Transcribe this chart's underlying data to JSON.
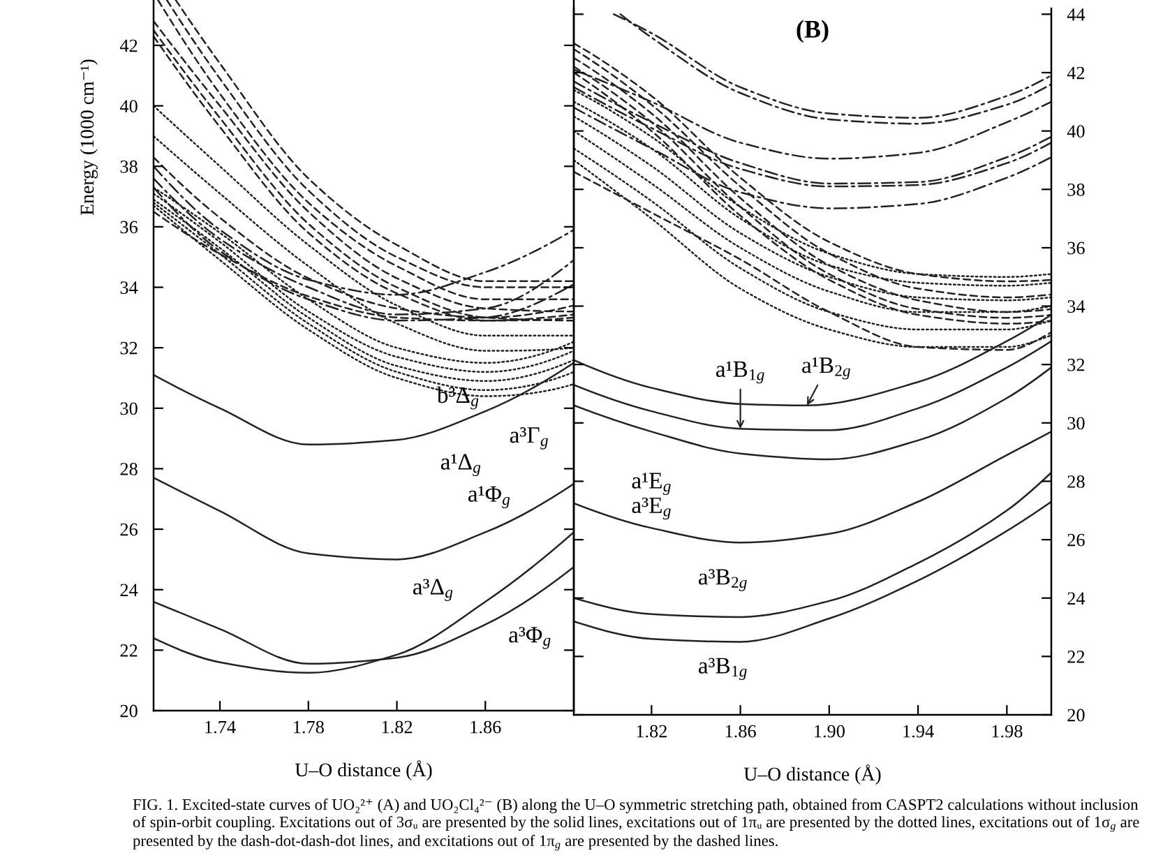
{
  "chart_data": [
    {
      "type": "line",
      "xlabel": "U–O distance (Å)",
      "ylabel": "Energy (1000 cm⁻¹)",
      "x": [
        1.71,
        1.74,
        1.78,
        1.82,
        1.86,
        1.9
      ],
      "xlim": [
        1.71,
        1.9
      ],
      "ylim": [
        20,
        43.5
      ],
      "xticks": [
        1.74,
        1.78,
        1.82,
        1.86
      ],
      "yticks": [
        20,
        22,
        24,
        26,
        28,
        30,
        32,
        34,
        36,
        38,
        40,
        42
      ],
      "series": [
        {
          "color": "#222222",
          "line_style": "solid",
          "values": [
            31.1,
            30.0,
            28.8,
            28.95,
            29.9,
            31.5
          ]
        },
        {
          "color": "#222222",
          "line_style": "solid",
          "values": [
            27.7,
            26.6,
            25.2,
            25.0,
            25.9,
            27.5
          ]
        },
        {
          "color": "#222222",
          "line_style": "solid",
          "values": [
            23.6,
            22.7,
            21.55,
            21.75,
            22.85,
            24.75
          ]
        },
        {
          "color": "#222222",
          "line_style": "solid",
          "values": [
            22.4,
            21.6,
            21.25,
            21.85,
            23.6,
            25.9
          ]
        },
        {
          "color": "#222222",
          "line_style": "dotted",
          "values": [
            40.0,
            38.0,
            35.4,
            33.4,
            32.4,
            32.4
          ]
        },
        {
          "color": "#222222",
          "line_style": "dotted",
          "values": [
            39.0,
            37.1,
            34.7,
            32.8,
            31.9,
            32.0
          ]
        },
        {
          "color": "#222222",
          "line_style": "dotted",
          "values": [
            37.3,
            35.8,
            33.6,
            32.0,
            31.5,
            32.2
          ]
        },
        {
          "color": "#222222",
          "line_style": "dotted",
          "values": [
            37.1,
            35.5,
            33.2,
            31.7,
            31.2,
            31.9
          ]
        },
        {
          "color": "#222222",
          "line_style": "dotted",
          "values": [
            36.9,
            35.3,
            33.0,
            31.4,
            30.9,
            31.6
          ]
        },
        {
          "color": "#222222",
          "line_style": "dotted",
          "values": [
            36.8,
            35.1,
            32.8,
            31.2,
            30.6,
            31.2
          ]
        },
        {
          "color": "#222222",
          "line_style": "dotted",
          "values": [
            36.7,
            34.9,
            32.6,
            31.0,
            30.4,
            30.8
          ]
        },
        {
          "color": "#222222",
          "line_style": "dashdot",
          "values": [
            38.0,
            35.9,
            34.25,
            33.75,
            34.5,
            35.9
          ]
        },
        {
          "color": "#222222",
          "line_style": "dashdot",
          "values": [
            37.6,
            35.6,
            34.0,
            33.1,
            33.3,
            34.9
          ]
        },
        {
          "color": "#222222",
          "line_style": "dashdot",
          "values": [
            37.3,
            35.2,
            33.6,
            32.9,
            33.0,
            34.1
          ]
        },
        {
          "color": "#222222",
          "line_style": "dashed",
          "x": [
            1.72,
            1.74,
            1.78,
            1.82,
            1.86,
            1.9
          ],
          "values": [
            43.5,
            41.4,
            37.6,
            35.4,
            34.2,
            34.2
          ]
        },
        {
          "color": "#222222",
          "line_style": "dashed",
          "x": [
            1.716,
            1.74,
            1.78,
            1.82,
            1.86,
            1.9
          ],
          "values": [
            43.5,
            40.9,
            37.2,
            35.0,
            34.0,
            34.0
          ]
        },
        {
          "color": "#222222",
          "line_style": "dashed",
          "x": [
            1.712,
            1.74,
            1.78,
            1.82,
            1.86,
            1.9
          ],
          "values": [
            43.5,
            40.4,
            36.8,
            34.7,
            33.6,
            33.6
          ]
        },
        {
          "color": "#222222",
          "line_style": "dashed",
          "values": [
            42.8,
            40.0,
            36.5,
            34.3,
            33.3,
            33.2
          ]
        },
        {
          "color": "#222222",
          "line_style": "dashed",
          "values": [
            42.5,
            39.6,
            36.1,
            34.0,
            33.0,
            32.9
          ]
        },
        {
          "color": "#222222",
          "line_style": "dashed",
          "values": [
            42.3,
            39.3,
            35.8,
            33.8,
            32.9,
            33.0
          ]
        },
        {
          "color": "#222222",
          "line_style": "dashed",
          "values": [
            38.3,
            36.3,
            34.3,
            33.3,
            33.0,
            33.4
          ]
        },
        {
          "color": "#222222",
          "line_style": "dashed",
          "values": [
            36.5,
            35.1,
            33.7,
            33.0,
            32.9,
            33.1
          ]
        }
      ],
      "annotations": [
        "FIG. 1. Excited-state curves of UO₂²⁺ (A) and UO₂Cl₄²⁻ (B) along the U–O symmetric stretching path, obtained from CASPT2 calculations without inclusion of spin-orbit coupling. Excitations out of 3σᵤ are presented by the solid lines, excitations out of 1πᵤ are presented by the dotted lines, excitations out of 1σ$_{g}$ are presented by the dash-dot-dash-dot lines, and excitations out of 1π$_{g}$ are presented by the dashed lines.",
        {
          "text": "b³Δ$_{g}$",
          "x": 1.86,
          "y": 30.4
        },
        {
          "text": "a³Γ$_{g}$",
          "x": 1.9,
          "y": 30.8
        },
        {
          "text": "a¹Δ$_{g}$",
          "x": 1.82,
          "y": 28.95
        },
        {
          "text": "a¹Φ$_{g}$",
          "x": 1.86,
          "y": 25.9
        },
        {
          "text": "a³Δ$_{g}$",
          "x": 1.86,
          "y": 23.6
        },
        {
          "text": "a³Φ$_{g}$",
          "x": 1.86,
          "y": 22.85
        }
      ]
    },
    {
      "type": "line",
      "title": "(B)",
      "xlabel": "U–O distance (Å)",
      "x": [
        1.785,
        1.82,
        1.86,
        1.9,
        1.94,
        1.98,
        2.0
      ],
      "xlim": [
        1.785,
        2.0
      ],
      "ylim": [
        20,
        44.2
      ],
      "xticks": [
        1.82,
        1.86,
        {
          "value": 1.9,
          "label": "1.90"
        },
        1.94,
        1.98
      ],
      "yticks": [
        20,
        22,
        24,
        26,
        28,
        30,
        32,
        34,
        36,
        38,
        40,
        42,
        44
      ],
      "series": [
        {
          "color": "#222222",
          "line_style": "solid",
          "x": [
            1.785,
            1.82,
            1.86,
            1.89,
            1.94,
            1.98,
            2.0
          ],
          "values": [
            32.15,
            31.2,
            30.65,
            30.6,
            31.4,
            32.8,
            33.7
          ]
        },
        {
          "color": "#222222",
          "line_style": "solid",
          "values": [
            31.3,
            30.4,
            29.8,
            29.75,
            30.5,
            31.9,
            32.8
          ]
        },
        {
          "color": "#222222",
          "line_style": "solid",
          "values": [
            30.6,
            29.7,
            28.95,
            28.75,
            29.4,
            30.85,
            31.9
          ]
        },
        {
          "color": "#222222",
          "line_style": "solid",
          "values": [
            27.25,
            26.4,
            25.9,
            26.2,
            27.3,
            28.9,
            29.7
          ]
        },
        {
          "color": "#222222",
          "line_style": "solid",
          "values": [
            24.0,
            23.45,
            23.35,
            23.9,
            25.2,
            27.0,
            28.3
          ]
        },
        {
          "color": "#222222",
          "line_style": "solid",
          "values": [
            23.2,
            22.6,
            22.5,
            23.3,
            24.6,
            26.3,
            27.3
          ]
        },
        {
          "color": "#222222",
          "line_style": "dashdot",
          "x": [
            1.803,
            1.82,
            1.86,
            1.9,
            1.94,
            1.98,
            2.0
          ],
          "values": [
            44.0,
            43.35,
            41.5,
            40.6,
            40.45,
            41.2,
            41.9
          ]
        },
        {
          "color": "#222222",
          "line_style": "dashdot",
          "x": [
            1.806,
            1.82,
            1.86,
            1.9,
            1.94,
            1.98,
            2.0
          ],
          "values": [
            44.0,
            43.2,
            41.3,
            40.4,
            40.25,
            40.9,
            41.6
          ]
        },
        {
          "color": "#222222",
          "line_style": "dashdot",
          "values": [
            42.1,
            41.0,
            39.6,
            39.05,
            39.25,
            40.3,
            41.0
          ]
        },
        {
          "color": "#222222",
          "line_style": "dashdot",
          "values": [
            41.7,
            40.3,
            38.9,
            38.2,
            38.25,
            39.1,
            39.8
          ]
        },
        {
          "color": "#222222",
          "line_style": "dashdot",
          "values": [
            41.5,
            40.1,
            38.7,
            38.1,
            38.15,
            38.9,
            39.6
          ]
        },
        {
          "color": "#222222",
          "line_style": "dashdot",
          "values": [
            40.8,
            39.4,
            37.9,
            37.35,
            37.5,
            38.4,
            39.1
          ]
        },
        {
          "color": "#222222",
          "line_style": "dashed",
          "values": [
            43.0,
            41.2,
            38.4,
            36.2,
            35.1,
            34.85,
            34.9
          ]
        },
        {
          "color": "#222222",
          "line_style": "dashed",
          "values": [
            42.8,
            40.9,
            38.1,
            35.8,
            34.6,
            34.3,
            34.4
          ]
        },
        {
          "color": "#222222",
          "line_style": "dashed",
          "values": [
            42.5,
            40.6,
            37.7,
            35.4,
            34.2,
            33.8,
            33.9
          ]
        },
        {
          "color": "#222222",
          "line_style": "dashed",
          "values": [
            42.2,
            40.3,
            37.4,
            35.1,
            33.9,
            33.6,
            33.7
          ]
        },
        {
          "color": "#222222",
          "line_style": "dashed",
          "values": [
            42.0,
            40.0,
            37.1,
            34.9,
            33.7,
            33.4,
            33.5
          ]
        },
        {
          "color": "#222222",
          "line_style": "dashed",
          "values": [
            38.6,
            37.2,
            35.6,
            33.8,
            32.6,
            32.5,
            33.1
          ]
        },
        {
          "color": "#222222",
          "line_style": "dotted",
          "values": [
            41.4,
            39.8,
            37.4,
            35.8,
            35.1,
            35.0,
            35.1
          ]
        },
        {
          "color": "#222222",
          "line_style": "dotted",
          "values": [
            41.0,
            39.4,
            37.0,
            35.4,
            34.8,
            34.7,
            34.8
          ]
        },
        {
          "color": "#222222",
          "line_style": "dotted",
          "values": [
            40.5,
            38.8,
            36.5,
            35.0,
            34.3,
            34.2,
            34.3
          ]
        },
        {
          "color": "#222222",
          "line_style": "dotted",
          "values": [
            40.0,
            38.2,
            36.0,
            34.5,
            33.8,
            33.8,
            34.0
          ]
        },
        {
          "color": "#222222",
          "line_style": "dotted",
          "values": [
            39.4,
            37.6,
            35.3,
            33.8,
            33.2,
            33.2,
            33.5
          ]
        },
        {
          "color": "#222222",
          "line_style": "dotted",
          "values": [
            39.0,
            37.0,
            34.6,
            33.2,
            32.6,
            32.6,
            33.0
          ]
        }
      ],
      "annotations": [
        {
          "text": "a¹B$_{1g}$",
          "x": 1.86,
          "y": 29.8
        },
        {
          "text": "a¹B$_{2g}$",
          "x": 1.89,
          "y": 30.6
        },
        {
          "text": "a¹E$_{g}$",
          "x": 1.82,
          "y": 29.7
        },
        {
          "text": "a³E$_{g}$",
          "x": 1.82,
          "y": 26.4
        },
        {
          "text": "a³B$_{2g}$",
          "x": 1.86,
          "y": 23.35
        },
        {
          "text": "a³B$_{1g}$",
          "x": 1.86,
          "y": 22.5
        }
      ]
    }
  ]
}
